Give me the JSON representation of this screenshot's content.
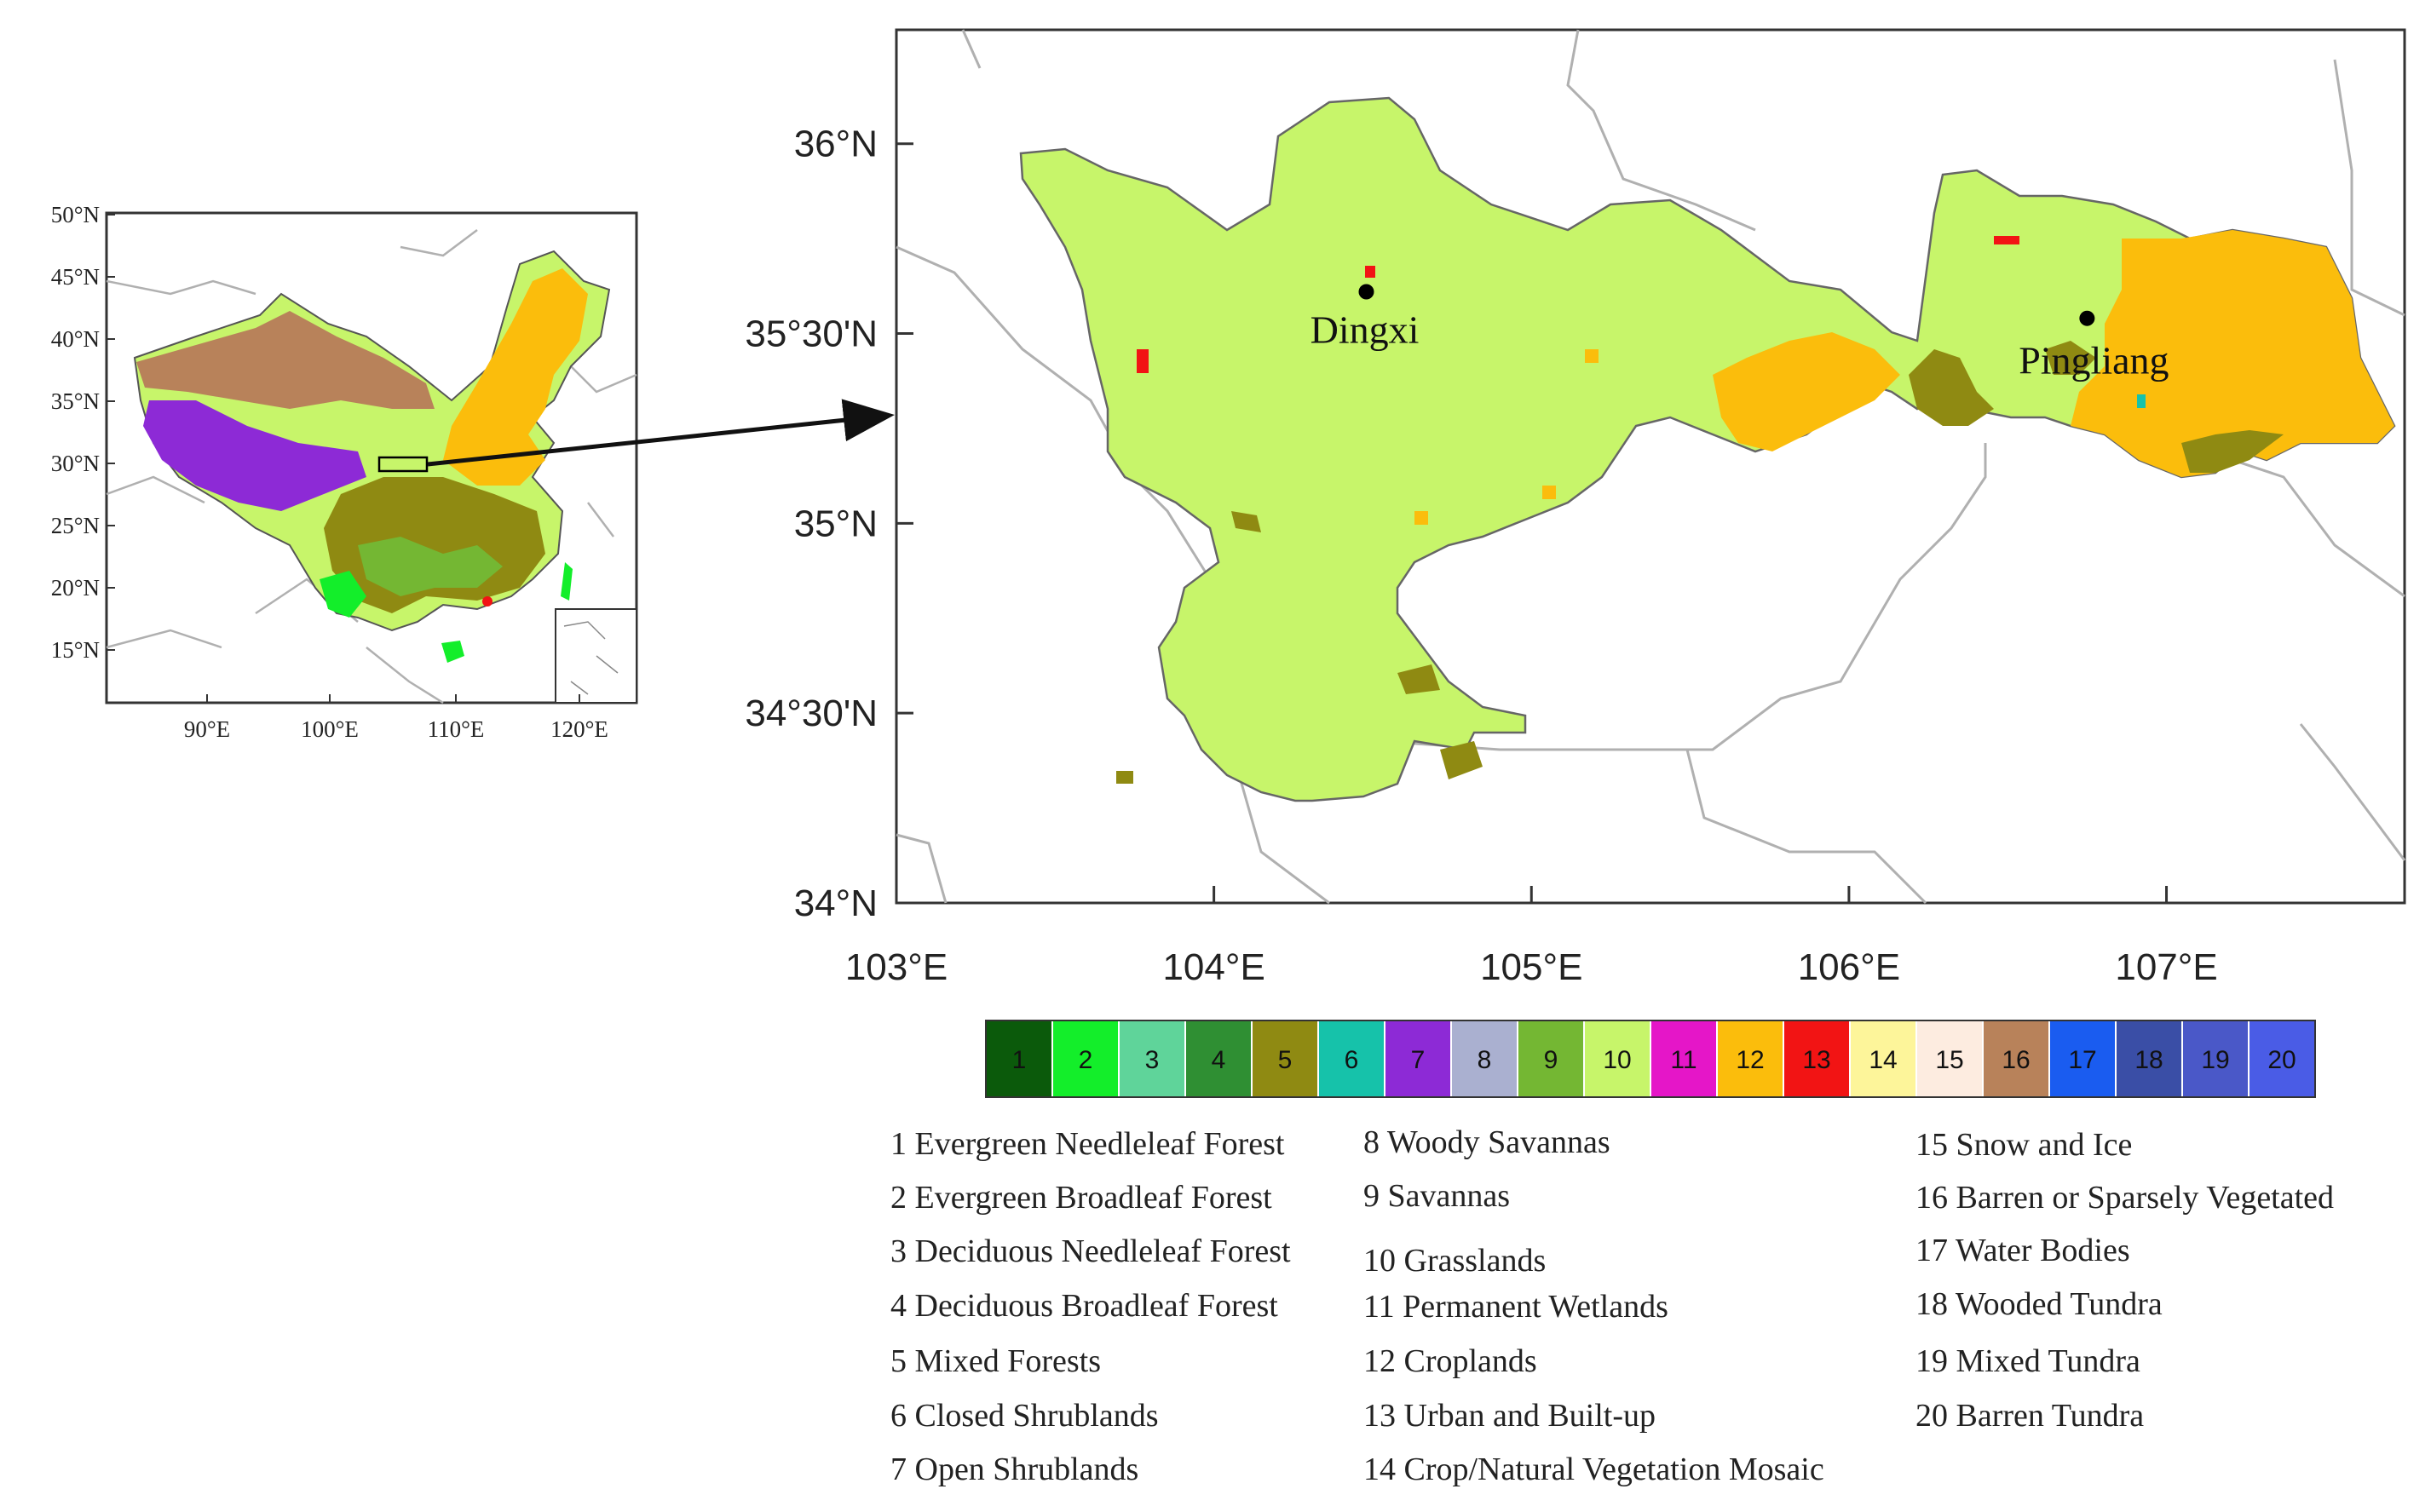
{
  "inset_map": {
    "lat_ticks": [
      "50°N",
      "45°N",
      "40°N",
      "35°N",
      "30°N",
      "25°N",
      "20°N",
      "15°N"
    ],
    "lon_ticks": [
      "90°E",
      "100°E",
      "110°E",
      "120°E"
    ]
  },
  "main_map": {
    "lat_ticks": [
      "36°N",
      "35°30'N",
      "35°N",
      "34°30'N",
      "34°N"
    ],
    "lon_ticks": [
      "103°E",
      "104°E",
      "105°E",
      "106°E",
      "107°E"
    ],
    "extent": {
      "lon": [
        103.0,
        107.75
      ],
      "lat": [
        34.0,
        36.3
      ]
    },
    "cities": [
      {
        "name": "Dingxi",
        "lon": 104.48,
        "lat": 35.61
      },
      {
        "name": "Pingliang",
        "lon": 106.75,
        "lat": 35.54
      }
    ]
  },
  "colorbar": {
    "classes": [
      {
        "num": "1",
        "color": "#0b5a0b"
      },
      {
        "num": "2",
        "color": "#13ee2a"
      },
      {
        "num": "3",
        "color": "#5fd49a"
      },
      {
        "num": "4",
        "color": "#2f8f33"
      },
      {
        "num": "5",
        "color": "#8f8a12"
      },
      {
        "num": "6",
        "color": "#16c2aa"
      },
      {
        "num": "7",
        "color": "#8d2ad6"
      },
      {
        "num": "8",
        "color": "#aab0d0"
      },
      {
        "num": "9",
        "color": "#74b733"
      },
      {
        "num": "10",
        "color": "#c7f56a"
      },
      {
        "num": "11",
        "color": "#e516c8"
      },
      {
        "num": "12",
        "color": "#fbbd0c"
      },
      {
        "num": "13",
        "color": "#f21414"
      },
      {
        "num": "14",
        "color": "#fdf59a"
      },
      {
        "num": "15",
        "color": "#fdece0"
      },
      {
        "num": "16",
        "color": "#b8825a"
      },
      {
        "num": "17",
        "color": "#1a5cf0"
      },
      {
        "num": "18",
        "color": "#3a4ea6"
      },
      {
        "num": "19",
        "color": "#4a58c8"
      },
      {
        "num": "20",
        "color": "#4a5ce6"
      }
    ]
  },
  "legend": [
    "1  Evergreen Needleleaf Forest",
    "2  Evergreen Broadleaf Forest",
    "3  Deciduous Needleleaf Forest",
    "4  Deciduous Broadleaf Forest",
    "5  Mixed Forests",
    "6  Closed Shrublands",
    "7  Open Shrublands",
    "8  Woody Savannas",
    "9  Savannas",
    "10  Grasslands",
    "11  Permanent Wetlands",
    "12  Croplands",
    "13  Urban and Built-up",
    "14  Crop/Natural Vegetation Mosaic",
    "15  Snow and Ice",
    "16  Barren or Sparsely Vegetated",
    "17  Water Bodies",
    "18  Wooded Tundra",
    "19  Mixed Tundra",
    "20  Barren Tundra"
  ]
}
